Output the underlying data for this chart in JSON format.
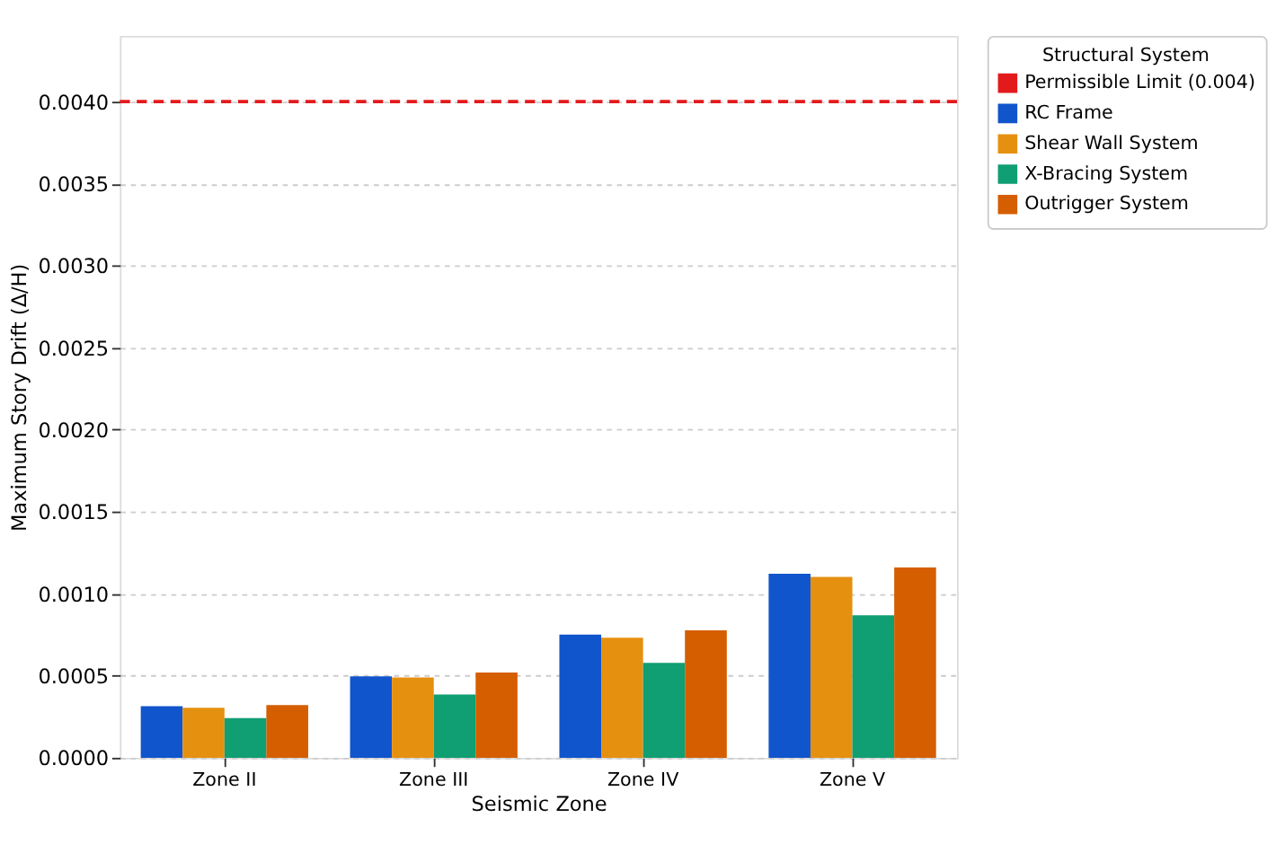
{
  "chart_data": {
    "type": "bar",
    "xlabel": "Seismic Zone",
    "ylabel": "Maximum Story Drift (Δ/H)",
    "legend_title": "Structural System",
    "categories": [
      "Zone II",
      "Zone III",
      "Zone IV",
      "Zone V"
    ],
    "series": [
      {
        "name": "RC Frame",
        "color": "#1155cc",
        "values": [
          0.000314,
          0.000496,
          0.00075,
          0.001122
        ]
      },
      {
        "name": "Shear Wall System",
        "color": "#e69010",
        "values": [
          0.000304,
          0.00049,
          0.000732,
          0.001102
        ]
      },
      {
        "name": "X-Bracing System",
        "color": "#109e73",
        "values": [
          0.000242,
          0.000386,
          0.000578,
          0.000869
        ]
      },
      {
        "name": "Outrigger System",
        "color": "#d55e00",
        "values": [
          0.000321,
          0.00052,
          0.000776,
          0.00116
        ]
      }
    ],
    "ylim": [
      0,
      0.0044
    ],
    "yticks": [
      {
        "value": 0,
        "label": "0.0000"
      },
      {
        "value": 0.0005,
        "label": "0.0005"
      },
      {
        "value": 0.001,
        "label": "0.0010"
      },
      {
        "value": 0.0015,
        "label": "0.0015"
      },
      {
        "value": 0.002,
        "label": "0.0020"
      },
      {
        "value": 0.0025,
        "label": "0.0025"
      },
      {
        "value": 0.003,
        "label": "0.0030"
      },
      {
        "value": 0.0035,
        "label": "0.0035"
      },
      {
        "value": 0.004,
        "label": "0.0040"
      }
    ],
    "ref_lines": [
      {
        "axis": "y",
        "value": 0.004,
        "label": "Permissible Limit (0.004)",
        "color": "#e31a1c",
        "line_style": "dashed"
      }
    ],
    "grid": "y",
    "legend": "top right"
  }
}
